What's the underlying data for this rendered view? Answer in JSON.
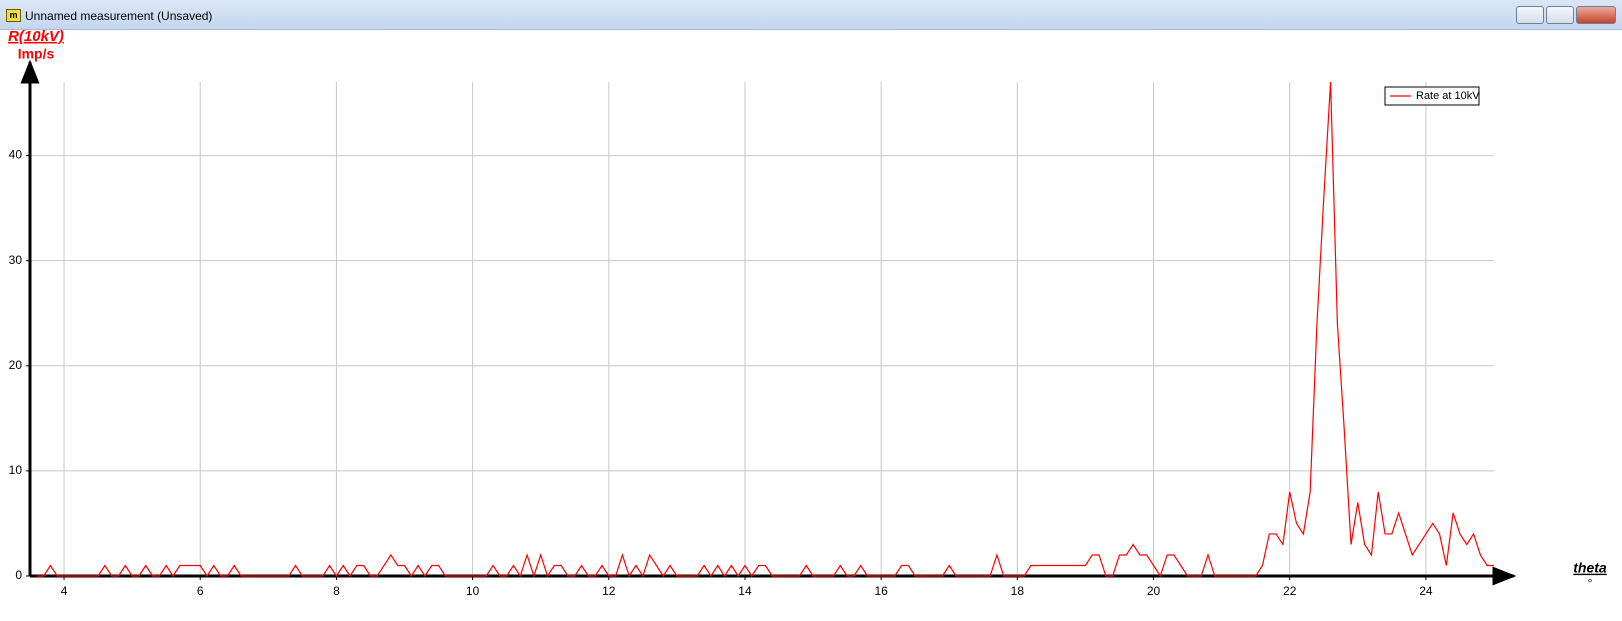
{
  "window": {
    "title": "Unnamed measurement (Unsaved)"
  },
  "chart_data": {
    "type": "line",
    "y_label": "R(10kV)",
    "y_unit": "Imp/s",
    "x_label": "theta",
    "x_unit": "°",
    "x": [
      3.6,
      3.7,
      3.8,
      3.9,
      4.0,
      4.1,
      4.2,
      4.3,
      4.4,
      4.5,
      4.6,
      4.7,
      4.8,
      4.9,
      5.0,
      5.1,
      5.2,
      5.3,
      5.4,
      5.5,
      5.6,
      5.7,
      5.8,
      5.9,
      6.0,
      6.1,
      6.2,
      6.3,
      6.4,
      6.5,
      6.6,
      6.7,
      6.8,
      6.9,
      7.0,
      7.1,
      7.2,
      7.3,
      7.4,
      7.5,
      7.6,
      7.7,
      7.8,
      7.9,
      8.0,
      8.1,
      8.2,
      8.3,
      8.4,
      8.5,
      8.6,
      8.7,
      8.8,
      8.9,
      9.0,
      9.1,
      9.2,
      9.3,
      9.4,
      9.5,
      9.6,
      9.7,
      9.8,
      9.9,
      10.0,
      10.1,
      10.2,
      10.3,
      10.4,
      10.5,
      10.6,
      10.7,
      10.8,
      10.9,
      11.0,
      11.1,
      11.2,
      11.3,
      11.4,
      11.5,
      11.6,
      11.7,
      11.8,
      11.9,
      12.0,
      12.1,
      12.2,
      12.3,
      12.4,
      12.5,
      12.6,
      12.7,
      12.8,
      12.9,
      13.0,
      13.1,
      13.2,
      13.3,
      13.4,
      13.5,
      13.6,
      13.7,
      13.8,
      13.9,
      14.0,
      14.1,
      14.2,
      14.3,
      14.4,
      14.5,
      14.6,
      14.7,
      14.8,
      14.9,
      15.0,
      15.1,
      15.2,
      15.3,
      15.4,
      15.5,
      15.6,
      15.7,
      15.8,
      15.9,
      16.0,
      16.1,
      16.2,
      16.3,
      16.4,
      16.5,
      16.6,
      16.7,
      16.8,
      16.9,
      17.0,
      17.1,
      17.2,
      17.3,
      17.4,
      17.5,
      17.6,
      17.7,
      17.8,
      17.9,
      18.0,
      18.1,
      18.2,
      18.3,
      18.4,
      18.5,
      18.6,
      18.7,
      18.8,
      18.9,
      19.0,
      19.1,
      19.2,
      19.3,
      19.4,
      19.5,
      19.6,
      19.7,
      19.8,
      19.9,
      20.0,
      20.1,
      20.2,
      20.3,
      20.4,
      20.5,
      20.6,
      20.7,
      20.8,
      20.9,
      21.0,
      21.1,
      21.2,
      21.3,
      21.4,
      21.5,
      21.6,
      21.7,
      21.8,
      21.9,
      22.0,
      22.1,
      22.2,
      22.3,
      22.4,
      22.5,
      22.6,
      22.7,
      22.8,
      22.9,
      23.0,
      23.1,
      23.2,
      23.3,
      23.4,
      23.5,
      23.6,
      23.7,
      23.8,
      23.9,
      24.0,
      24.1,
      24.2,
      24.3,
      24.4,
      24.5,
      24.6,
      24.7,
      24.8,
      24.9,
      25.0
    ],
    "series": [
      {
        "name": "Rate at 10kV",
        "color": "#ff0000",
        "values": [
          0,
          0,
          1,
          0,
          0,
          0,
          0,
          0,
          0,
          0,
          1,
          0,
          0,
          1,
          0,
          0,
          1,
          0,
          0,
          1,
          0,
          1,
          1,
          1,
          1,
          0,
          1,
          0,
          0,
          1,
          0,
          0,
          0,
          0,
          0,
          0,
          0,
          0,
          1,
          0,
          0,
          0,
          0,
          1,
          0,
          1,
          0,
          1,
          1,
          0,
          0,
          1,
          2,
          1,
          1,
          0,
          1,
          0,
          1,
          1,
          0,
          0,
          0,
          0,
          0,
          0,
          0,
          1,
          0,
          0,
          1,
          0,
          2,
          0,
          2,
          0,
          1,
          1,
          0,
          0,
          1,
          0,
          0,
          1,
          0,
          0,
          2,
          0,
          1,
          0,
          2,
          1,
          0,
          1,
          0,
          0,
          0,
          0,
          1,
          0,
          1,
          0,
          1,
          0,
          1,
          0,
          1,
          1,
          0,
          0,
          0,
          0,
          0,
          1,
          0,
          0,
          0,
          0,
          1,
          0,
          0,
          1,
          0,
          0,
          0,
          0,
          0,
          1,
          1,
          0,
          0,
          0,
          0,
          0,
          1,
          0,
          0,
          0,
          0,
          0,
          0,
          2,
          0,
          0,
          0,
          0,
          1,
          1,
          1,
          1,
          1,
          1,
          1,
          1,
          1,
          2,
          2,
          0,
          0,
          2,
          2,
          3,
          2,
          2,
          1,
          0,
          2,
          2,
          1,
          0,
          0,
          0,
          2,
          0,
          0,
          0,
          0,
          0,
          0,
          0,
          1,
          4,
          4,
          3,
          8,
          5,
          4,
          8,
          24,
          36,
          47,
          24,
          14,
          3,
          7,
          3,
          2,
          8,
          4,
          4,
          6,
          4,
          2,
          3,
          4,
          5,
          4,
          1,
          6,
          4,
          3,
          4,
          2,
          1,
          1
        ]
      }
    ],
    "xlim": [
      3.5,
      25
    ],
    "ylim": [
      0,
      47
    ],
    "xticks": [
      4,
      6,
      8,
      10,
      12,
      14,
      16,
      18,
      20,
      22,
      24
    ],
    "yticks": [
      0,
      10,
      20,
      30,
      40
    ],
    "grid": true,
    "legend": "top-right"
  }
}
